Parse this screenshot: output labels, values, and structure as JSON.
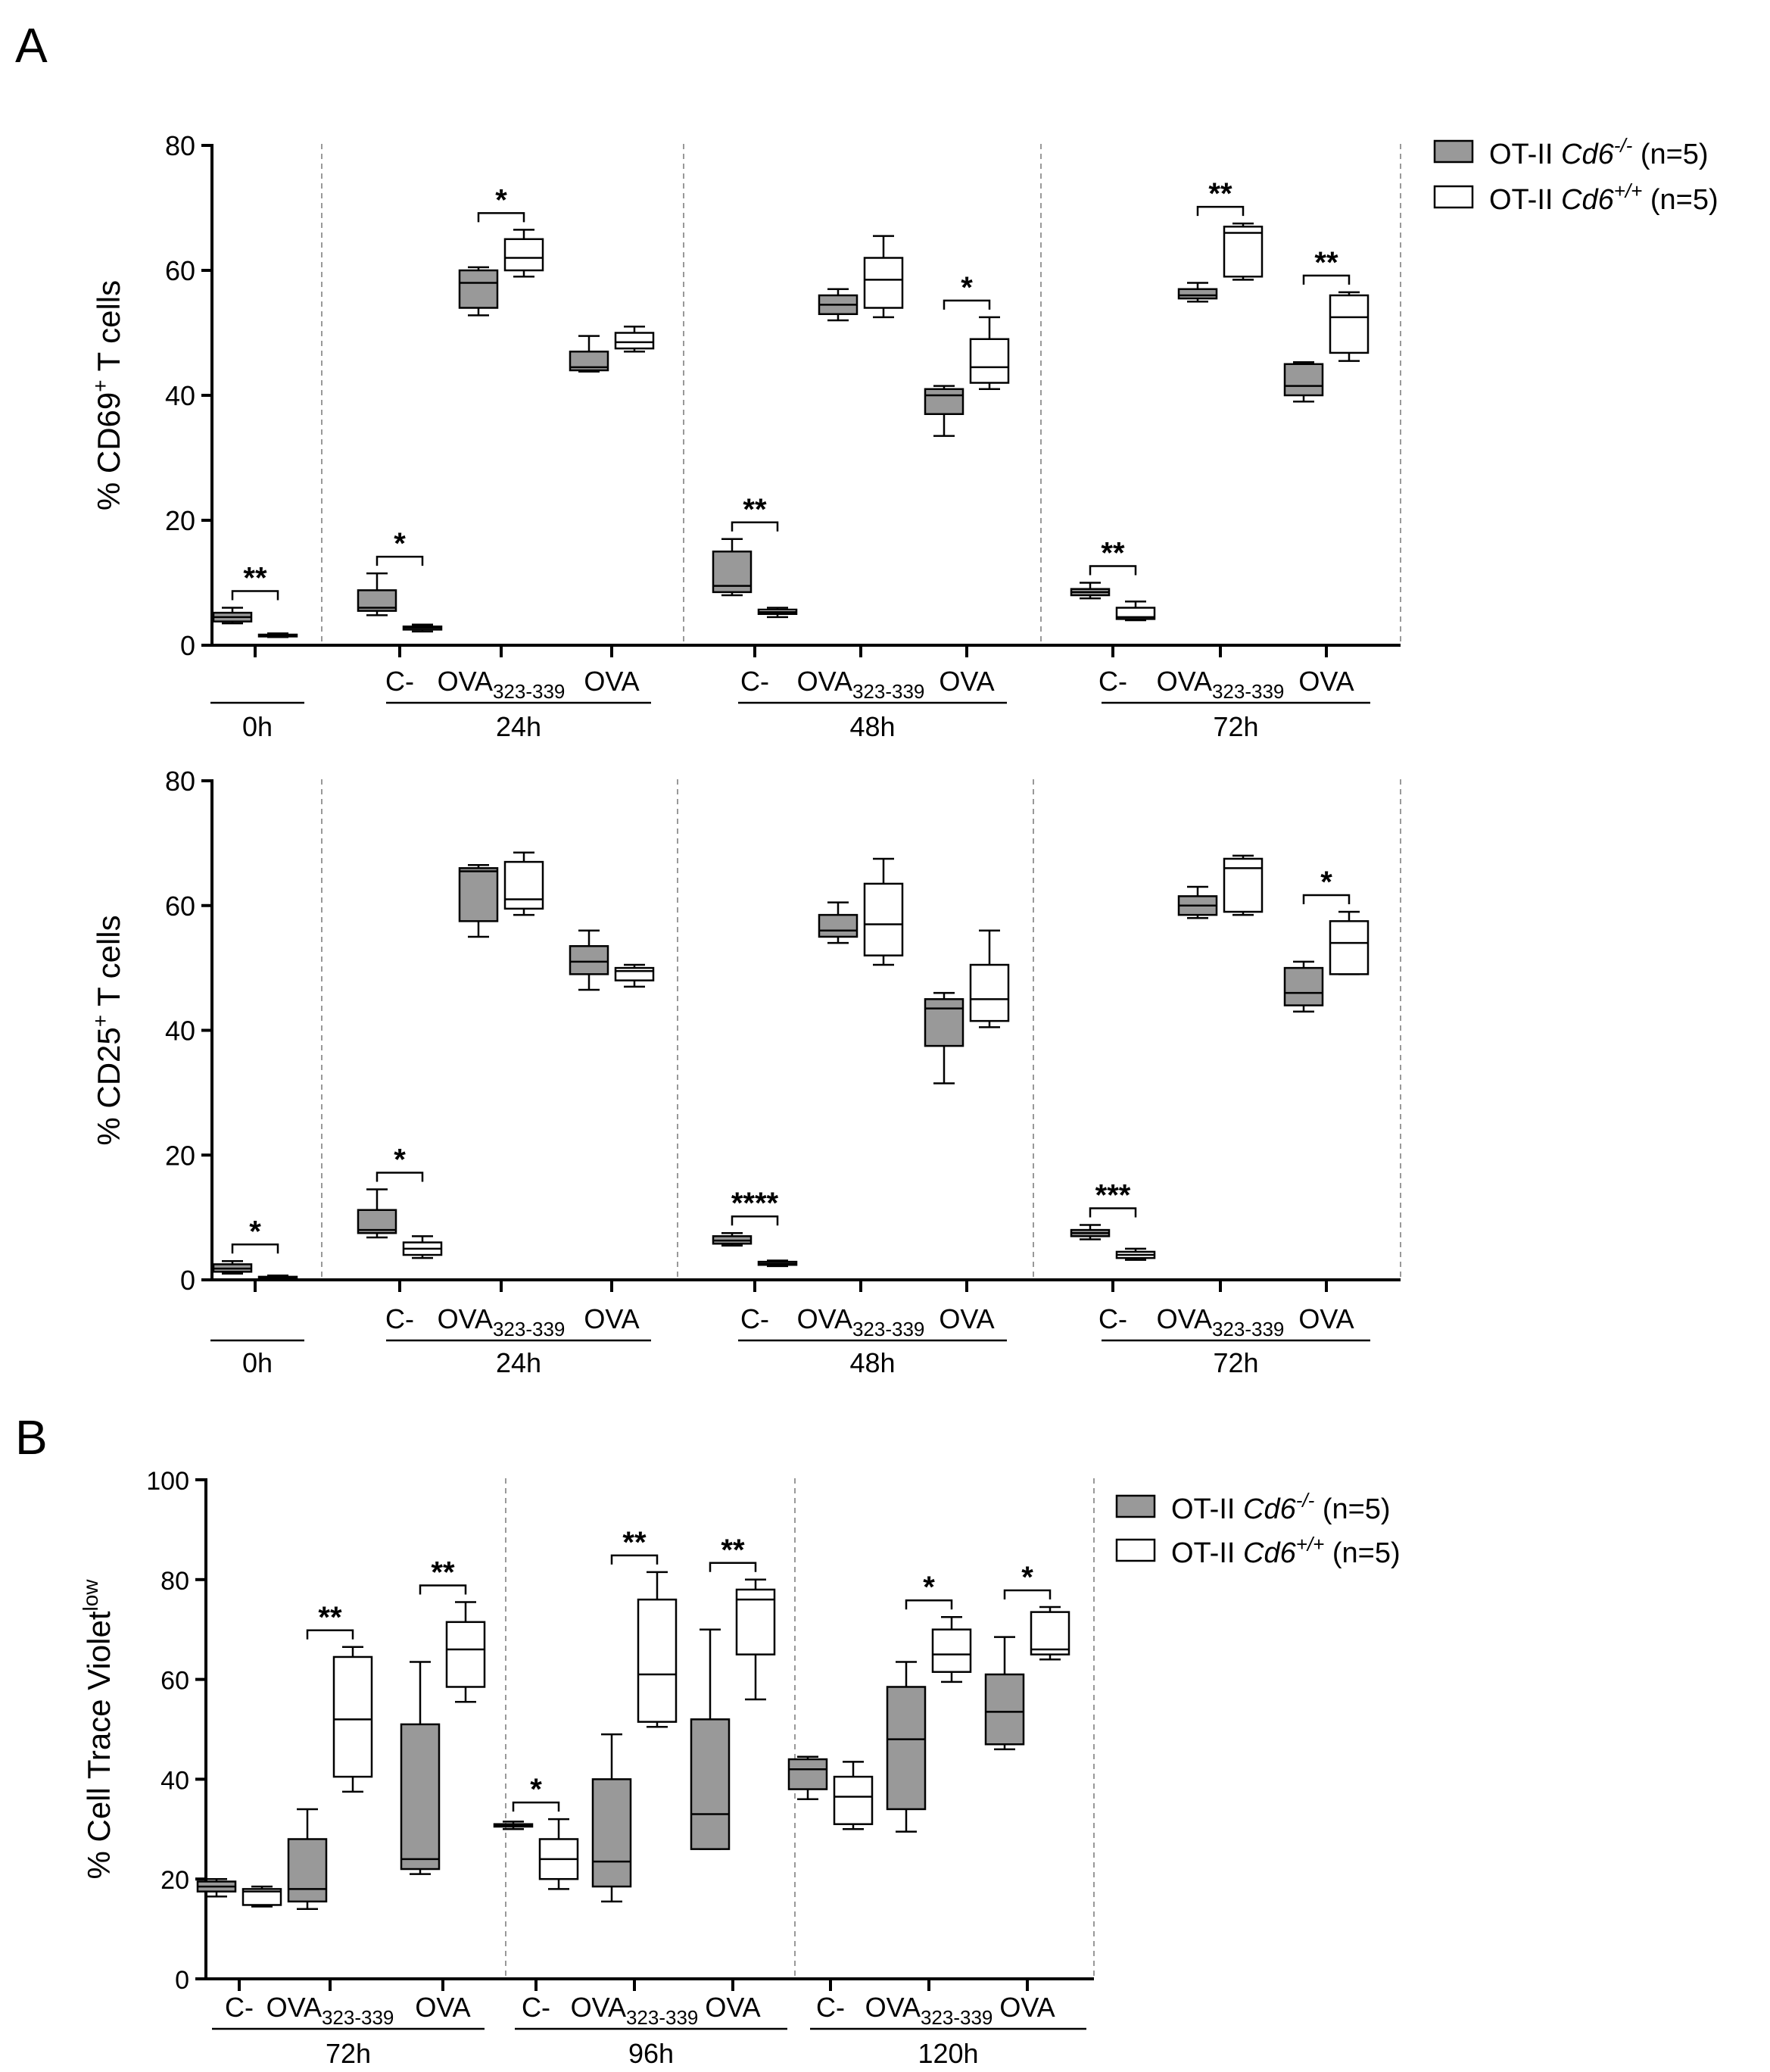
{
  "figure": {
    "label_a": "A",
    "label_b": "B"
  },
  "colors": {
    "ko_fill": "#999999",
    "wt_fill": "#ffffff",
    "stroke": "#000000",
    "divider": "#999999"
  },
  "legend": {
    "ko": {
      "prefix": "OT-II ",
      "gene": "Cd6",
      "sup": "-/-",
      "suffix": " (n=5)"
    },
    "wt": {
      "prefix": "OT-II ",
      "gene": "Cd6",
      "sup": "+/+",
      "suffix": " (n=5)"
    }
  },
  "chart_data": [
    {
      "type": "boxplot",
      "ylabel_main": "% CD69",
      "ylabel_sup": "+",
      "ylabel_tail": " T cells",
      "ylim": [
        0,
        80
      ],
      "yticks": [
        "0",
        "20",
        "40",
        "60",
        "80"
      ],
      "groups": [
        {
          "label": "0h",
          "categories": [
            {
              "name": "",
              "sub": "",
              "ko": [
                3.5,
                3.8,
                4.5,
                5.2,
                6.0
              ],
              "wt": [
                1.3,
                1.4,
                1.6,
                1.7,
                1.9
              ],
              "sig": "**"
            }
          ]
        },
        {
          "label": "24h",
          "categories": [
            {
              "name": "C-",
              "sub": "",
              "ko": [
                4.8,
                5.5,
                6.0,
                8.8,
                11.5
              ],
              "wt": [
                2.2,
                2.5,
                2.8,
                3.0,
                3.3
              ],
              "sig": "*"
            },
            {
              "name": "OVA",
              "sub": "323-339",
              "ko": [
                52.8,
                54.0,
                58.0,
                60.0,
                60.5
              ],
              "wt": [
                59.0,
                60.0,
                62.0,
                65.0,
                66.5
              ],
              "sig": "*"
            },
            {
              "name": "OVA",
              "sub": "",
              "ko": [
                43.8,
                44.0,
                44.5,
                47.0,
                49.5
              ],
              "wt": [
                47.0,
                47.5,
                48.5,
                50.0,
                51.0
              ],
              "sig": ""
            }
          ]
        },
        {
          "label": "48h",
          "categories": [
            {
              "name": "C-",
              "sub": "",
              "ko": [
                8.0,
                8.5,
                9.5,
                15.0,
                17.0
              ],
              "wt": [
                4.5,
                5.0,
                5.3,
                5.7,
                6.0
              ],
              "sig": "**"
            },
            {
              "name": "OVA",
              "sub": "323-339",
              "ko": [
                52.0,
                53.0,
                54.5,
                56.0,
                57.0
              ],
              "wt": [
                52.5,
                54.0,
                58.5,
                62.0,
                65.5
              ],
              "sig": ""
            },
            {
              "name": "OVA",
              "sub": "",
              "ko": [
                33.5,
                37.0,
                40.0,
                41.0,
                41.5
              ],
              "wt": [
                41.0,
                42.0,
                44.5,
                49.0,
                52.5
              ],
              "sig": "*"
            }
          ]
        },
        {
          "label": "72h",
          "categories": [
            {
              "name": "C-",
              "sub": "",
              "ko": [
                7.5,
                8.0,
                8.5,
                9.0,
                10.0
              ],
              "wt": [
                4.0,
                4.2,
                4.5,
                6.0,
                7.0
              ],
              "sig": "**"
            },
            {
              "name": "OVA",
              "sub": "323-339",
              "ko": [
                55.0,
                55.5,
                56.0,
                57.0,
                58.0
              ],
              "wt": [
                58.5,
                59.0,
                66.0,
                67.0,
                67.5
              ],
              "sig": "**"
            },
            {
              "name": "OVA",
              "sub": "",
              "ko": [
                39.0,
                40.0,
                41.5,
                45.0,
                45.3
              ],
              "wt": [
                45.5,
                46.8,
                52.5,
                56.0,
                56.5
              ],
              "sig": "**"
            }
          ]
        }
      ]
    },
    {
      "type": "boxplot",
      "ylabel_main": "% CD25",
      "ylabel_sup": "+",
      "ylabel_tail": " T cells",
      "ylim": [
        0,
        80
      ],
      "yticks": [
        "0",
        "20",
        "40",
        "60",
        "80"
      ],
      "groups": [
        {
          "label": "0h",
          "categories": [
            {
              "name": "",
              "sub": "",
              "ko": [
                1.0,
                1.3,
                1.8,
                2.5,
                3.0
              ],
              "wt": [
                0.2,
                0.3,
                0.4,
                0.5,
                0.7
              ],
              "sig": "*"
            }
          ]
        },
        {
          "label": "24h",
          "categories": [
            {
              "name": "C-",
              "sub": "",
              "ko": [
                6.8,
                7.5,
                8.0,
                11.2,
                14.5
              ],
              "wt": [
                3.5,
                4.0,
                5.0,
                6.0,
                7.0
              ],
              "sig": "*"
            },
            {
              "name": "OVA",
              "sub": "323-339",
              "ko": [
                55.0,
                57.5,
                65.5,
                66.0,
                66.5
              ],
              "wt": [
                58.5,
                59.5,
                61.0,
                67.0,
                68.5
              ],
              "sig": ""
            },
            {
              "name": "OVA",
              "sub": "",
              "ko": [
                46.5,
                49.0,
                51.0,
                53.5,
                56.0
              ],
              "wt": [
                47.0,
                48.0,
                49.5,
                50.0,
                50.5
              ],
              "sig": ""
            }
          ]
        },
        {
          "label": "48h",
          "categories": [
            {
              "name": "C-",
              "sub": "",
              "ko": [
                5.5,
                5.8,
                6.3,
                7.0,
                7.5
              ],
              "wt": [
                2.2,
                2.4,
                2.6,
                2.9,
                3.1
              ],
              "sig": "****"
            },
            {
              "name": "OVA",
              "sub": "323-339",
              "ko": [
                54.0,
                55.0,
                56.0,
                58.5,
                60.5
              ],
              "wt": [
                50.5,
                52.0,
                57.0,
                63.5,
                67.5
              ],
              "sig": ""
            },
            {
              "name": "OVA",
              "sub": "",
              "ko": [
                31.5,
                37.5,
                43.5,
                45.0,
                46.0
              ],
              "wt": [
                40.5,
                41.5,
                45.0,
                50.5,
                56.0
              ],
              "sig": ""
            }
          ]
        },
        {
          "label": "72h",
          "categories": [
            {
              "name": "C-",
              "sub": "",
              "ko": [
                6.5,
                7.0,
                7.5,
                8.0,
                8.8
              ],
              "wt": [
                3.2,
                3.5,
                4.0,
                4.5,
                5.0
              ],
              "sig": "***"
            },
            {
              "name": "OVA",
              "sub": "323-339",
              "ko": [
                58.0,
                58.5,
                60.0,
                61.5,
                63.0
              ],
              "wt": [
                58.5,
                59.0,
                66.0,
                67.5,
                68.0
              ],
              "sig": ""
            },
            {
              "name": "OVA",
              "sub": "",
              "ko": [
                43.0,
                44.0,
                46.0,
                50.0,
                51.0
              ],
              "wt": [
                49.0,
                49.0,
                54.0,
                57.5,
                59.0
              ],
              "sig": "*"
            }
          ]
        }
      ]
    },
    {
      "type": "boxplot",
      "ylabel_main": "% Cell Trace Violet",
      "ylabel_sup": "low",
      "ylabel_tail": "",
      "ylim": [
        0,
        100
      ],
      "yticks": [
        "0",
        "20",
        "40",
        "60",
        "80",
        "100"
      ],
      "groups": [
        {
          "label": "72h",
          "categories": [
            {
              "name": "C-",
              "sub": "",
              "ko": [
                16.5,
                17.5,
                18.5,
                19.5,
                20.0
              ],
              "wt": [
                14.5,
                14.8,
                17.5,
                18.0,
                18.5
              ],
              "sig": ""
            },
            {
              "name": "OVA",
              "sub": "323-339",
              "ko": [
                14.0,
                15.5,
                18.0,
                28.0,
                34.0
              ],
              "wt": [
                37.5,
                40.5,
                52.0,
                64.5,
                66.5
              ],
              "sig": "**"
            },
            {
              "name": "OVA",
              "sub": "",
              "ko": [
                21.0,
                22.0,
                24.0,
                51.0,
                63.5
              ],
              "wt": [
                55.5,
                58.5,
                66.0,
                71.5,
                75.5
              ],
              "sig": "**"
            }
          ]
        },
        {
          "label": "96h",
          "categories": [
            {
              "name": "C-",
              "sub": "",
              "ko": [
                30.0,
                30.5,
                30.8,
                31.0,
                31.5
              ],
              "wt": [
                18.0,
                20.0,
                24.0,
                28.0,
                32.0
              ],
              "sig": "*"
            },
            {
              "name": "OVA",
              "sub": "323-339",
              "ko": [
                15.5,
                18.5,
                23.5,
                40.0,
                49.0
              ],
              "wt": [
                50.5,
                51.5,
                61.0,
                76.0,
                81.5
              ],
              "sig": "**"
            },
            {
              "name": "OVA",
              "sub": "",
              "ko": [
                26.0,
                26.0,
                33.0,
                52.0,
                70.0
              ],
              "wt": [
                56.0,
                65.0,
                76.0,
                78.0,
                80.0
              ],
              "sig": "**"
            }
          ]
        },
        {
          "label": "120h",
          "categories": [
            {
              "name": "C-",
              "sub": "",
              "ko": [
                36.0,
                38.0,
                42.0,
                44.0,
                44.5
              ],
              "wt": [
                30.0,
                31.0,
                36.5,
                40.5,
                43.5
              ],
              "sig": ""
            },
            {
              "name": "OVA",
              "sub": "323-339",
              "ko": [
                29.5,
                34.0,
                48.0,
                58.5,
                63.5
              ],
              "wt": [
                59.5,
                61.5,
                65.0,
                70.0,
                72.5
              ],
              "sig": "*"
            },
            {
              "name": "OVA",
              "sub": "",
              "ko": [
                46.0,
                47.0,
                53.5,
                61.0,
                68.5
              ],
              "wt": [
                64.0,
                65.0,
                66.0,
                73.5,
                74.5
              ],
              "sig": "*"
            }
          ]
        }
      ]
    }
  ]
}
